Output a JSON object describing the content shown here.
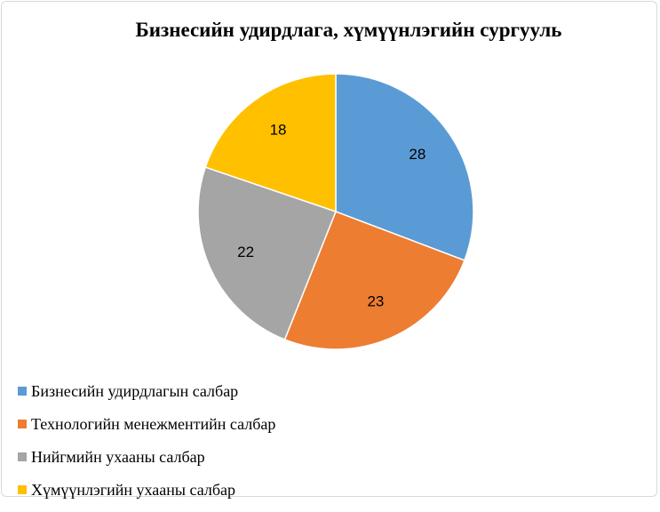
{
  "chart_data": {
    "type": "pie",
    "title": "Бизнесийн удирдлага, хүмүүнлэгийн сургууль",
    "categories": [
      "Бизнесийн удирдлагын салбар",
      "Технологийн менежментийн салбар",
      "Нийгмийн ухааны салбар",
      "Хүмүүнлэгийн ухааны салбар"
    ],
    "values": [
      28,
      23,
      22,
      18
    ],
    "colors": [
      "#5b9bd5",
      "#ed7d31",
      "#a5a5a5",
      "#ffc000"
    ],
    "data_labels": [
      "28",
      "23",
      "22",
      "18"
    ],
    "legend_position": "bottom-left"
  }
}
